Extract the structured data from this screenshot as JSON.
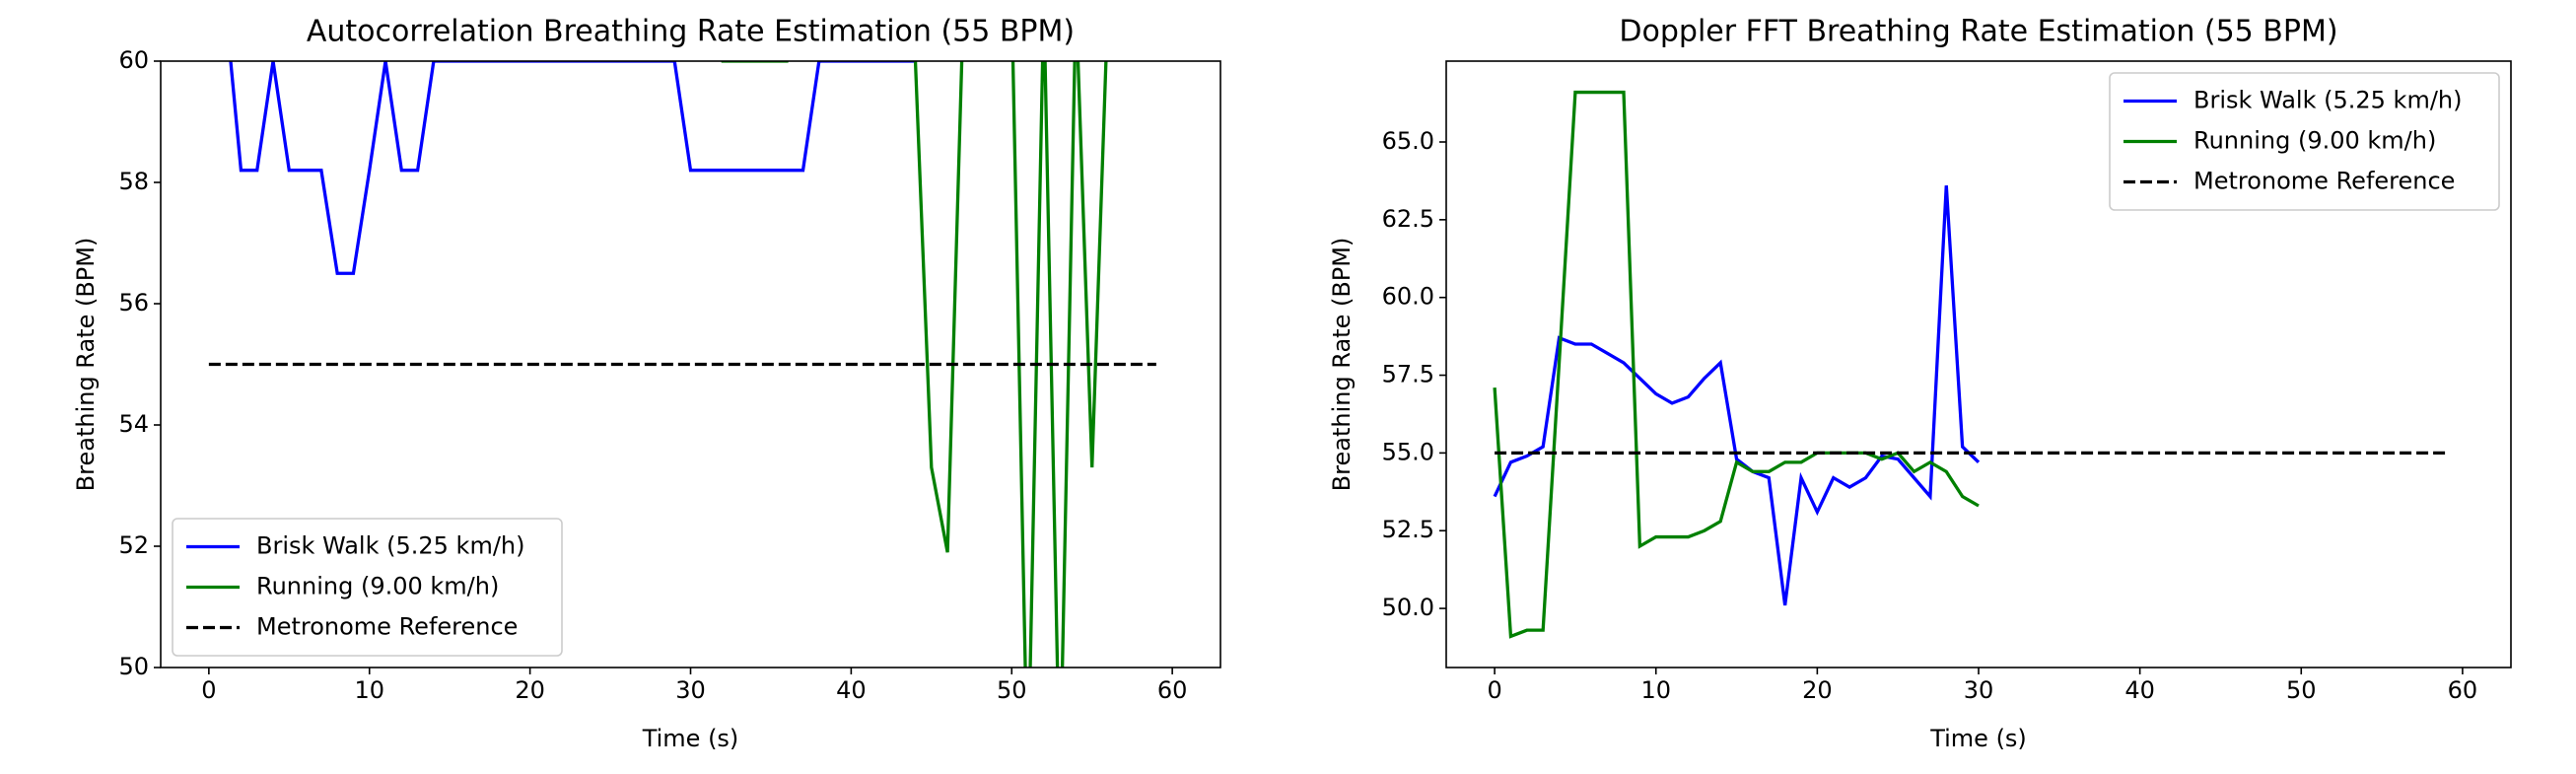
{
  "chart_data": [
    {
      "type": "line",
      "title": "Autocorrelation Breathing Rate Estimation (55 BPM)",
      "xlabel": "Time (s)",
      "ylabel": "Breathing Rate (BPM)",
      "xlim": [
        -3,
        63
      ],
      "ylim": [
        50,
        60
      ],
      "xticks": [
        0,
        10,
        20,
        30,
        40,
        50,
        60
      ],
      "yticks": [
        50,
        52,
        54,
        56,
        58,
        60
      ],
      "legend": "lower left",
      "series": [
        {
          "name": "Brisk Walk (5.25 km/h)",
          "color": "#0000ff",
          "linestyle": "solid",
          "x": [
            0,
            1,
            2,
            3,
            4,
            5,
            6,
            7,
            8,
            9,
            10,
            11,
            12,
            13,
            14,
            15,
            16,
            17,
            18,
            19,
            20,
            21,
            22,
            23,
            24,
            25,
            26,
            27,
            28,
            29,
            30,
            31,
            32,
            33,
            34,
            35,
            36,
            37,
            38,
            39,
            40,
            41,
            42,
            43,
            44
          ],
          "values": [
            61,
            61,
            58.2,
            58.2,
            60,
            58.2,
            58.2,
            58.2,
            56.5,
            56.5,
            58.2,
            60,
            58.2,
            58.2,
            60,
            60,
            60,
            60,
            60,
            60,
            60,
            60,
            60,
            60,
            60,
            60,
            60,
            60,
            60,
            60,
            58.2,
            58.2,
            58.2,
            58.2,
            58.2,
            58.2,
            58.2,
            58.2,
            60,
            60,
            60,
            60,
            60,
            60,
            60
          ]
        },
        {
          "name": "Running (9.00 km/h)",
          "color": "#008000",
          "linestyle": "solid",
          "x": [
            0,
            1,
            2,
            3,
            4,
            5,
            6,
            7,
            8,
            9,
            10,
            11,
            12,
            13,
            14,
            15,
            16,
            17,
            18,
            19,
            20,
            21,
            22,
            23,
            24,
            25,
            26,
            27,
            28,
            29,
            30,
            31,
            32,
            33,
            34,
            35,
            36,
            37,
            38,
            39,
            40,
            41,
            42,
            43,
            44,
            45,
            46,
            47,
            48,
            49,
            50,
            51,
            52,
            53,
            54,
            55,
            56
          ],
          "values": [
            61,
            61,
            61,
            61,
            61,
            61,
            61,
            61,
            61,
            61,
            61,
            61,
            61,
            61,
            61,
            61,
            61,
            61,
            61,
            61,
            61,
            61,
            61,
            61,
            61,
            61,
            61,
            61,
            61,
            61,
            61,
            61,
            60,
            60,
            60,
            60,
            60,
            61,
            61,
            61,
            61,
            61,
            61,
            61,
            60,
            53.3,
            51.9,
            61,
            61,
            61,
            61,
            48,
            61,
            48,
            61,
            53.3,
            61
          ]
        },
        {
          "name": "Metronome Reference",
          "color": "#000000",
          "linestyle": "dashed",
          "x": [
            0,
            59
          ],
          "values": [
            55,
            55
          ]
        }
      ]
    },
    {
      "type": "line",
      "title": "Doppler FFT Breathing Rate Estimation (55 BPM)",
      "xlabel": "Time (s)",
      "ylabel": "Breathing Rate (BPM)",
      "xlim": [
        -3,
        63
      ],
      "ylim": [
        48.1,
        67.6
      ],
      "xticks": [
        0,
        10,
        20,
        30,
        40,
        50,
        60
      ],
      "yticks": [
        {
          "value": 50,
          "label": "50.0"
        },
        {
          "value": 52.5,
          "label": "52.5"
        },
        {
          "value": 55,
          "label": "55.0"
        },
        {
          "value": 57.5,
          "label": "57.5"
        },
        {
          "value": 60,
          "label": "60.0"
        },
        {
          "value": 62.5,
          "label": "62.5"
        },
        {
          "value": 65,
          "label": "65.0"
        }
      ],
      "legend": "upper right",
      "series": [
        {
          "name": "Brisk Walk (5.25 km/h)",
          "color": "#0000ff",
          "linestyle": "solid",
          "x": [
            0,
            1,
            2,
            3,
            4,
            5,
            6,
            7,
            8,
            9,
            10,
            11,
            12,
            13,
            14,
            15,
            16,
            17,
            18,
            19,
            20,
            21,
            22,
            23,
            24,
            25,
            26,
            27,
            28,
            29,
            30
          ],
          "values": [
            53.6,
            54.7,
            54.9,
            55.2,
            58.7,
            58.5,
            58.5,
            58.2,
            57.9,
            57.4,
            56.9,
            56.6,
            56.8,
            57.4,
            57.9,
            54.8,
            54.4,
            54.2,
            50.1,
            54.2,
            53.1,
            54.2,
            53.9,
            54.2,
            54.9,
            54.8,
            54.2,
            53.6,
            63.6,
            55.2,
            54.7
          ]
        },
        {
          "name": "Running (9.00 km/h)",
          "color": "#008000",
          "linestyle": "solid",
          "x": [
            0,
            1,
            2,
            3,
            4,
            5,
            6,
            7,
            8,
            9,
            10,
            11,
            12,
            13,
            14,
            15,
            16,
            17,
            18,
            19,
            20,
            21,
            22,
            23,
            24,
            25,
            26,
            27,
            28,
            29,
            30
          ],
          "values": [
            57.1,
            49.1,
            49.3,
            49.3,
            57.9,
            66.6,
            66.6,
            66.6,
            66.6,
            52.0,
            52.3,
            52.3,
            52.3,
            52.5,
            52.8,
            54.7,
            54.4,
            54.4,
            54.7,
            54.7,
            55.0,
            55.0,
            55.0,
            55.0,
            54.8,
            55.0,
            54.4,
            54.7,
            54.4,
            53.6,
            53.3
          ]
        },
        {
          "name": "Metronome Reference",
          "color": "#000000",
          "linestyle": "dashed",
          "x": [
            0,
            59
          ],
          "values": [
            55,
            55
          ]
        }
      ]
    }
  ]
}
